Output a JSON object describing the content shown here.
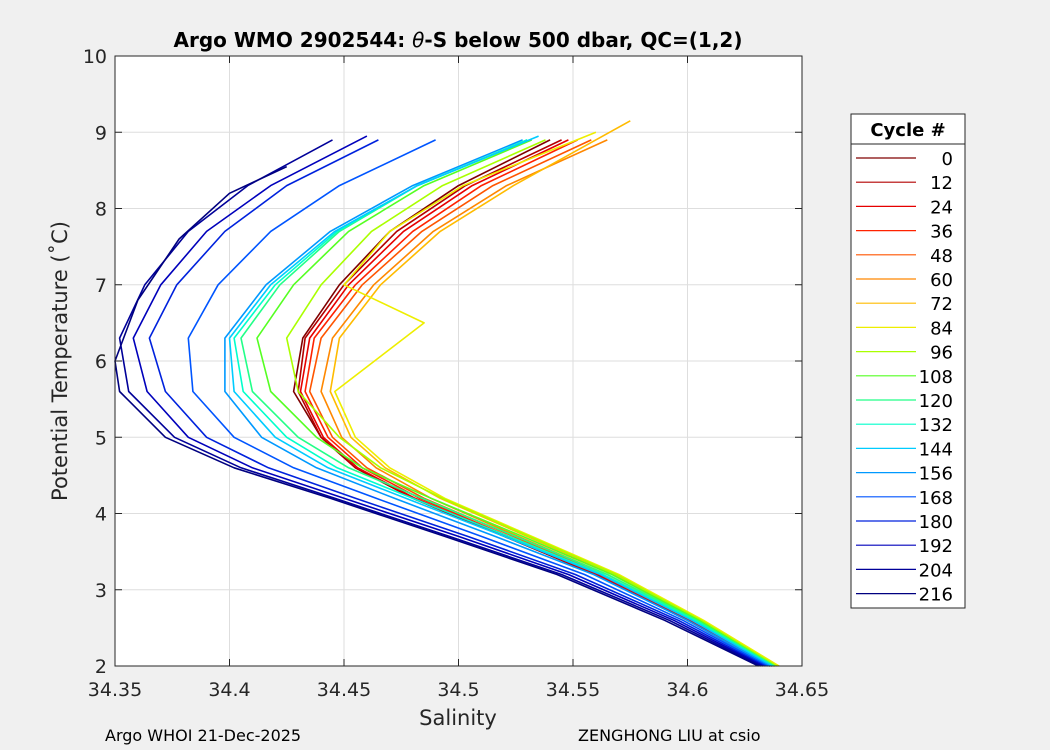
{
  "chart_data": {
    "type": "line",
    "title_prefix": "Argo WMO 2902544: ",
    "title_symbol": "θ",
    "title_suffix": "-S below 500 dbar,  QC=(1,2)",
    "xlabel": "Salinity",
    "ylabel": "Potential Temperature (˚C)",
    "xlim": [
      34.35,
      34.65
    ],
    "ylim": [
      2,
      10
    ],
    "x_ticks": [
      34.35,
      34.4,
      34.45,
      34.5,
      34.55,
      34.6,
      34.65
    ],
    "x_tick_labels": [
      "34.35",
      "34.4",
      "34.45",
      "34.5",
      "34.55",
      "34.6",
      "34.65"
    ],
    "y_ticks": [
      2,
      3,
      4,
      5,
      6,
      7,
      8,
      9,
      10
    ],
    "y_tick_labels": [
      "2",
      "3",
      "4",
      "5",
      "6",
      "7",
      "8",
      "9",
      "10"
    ],
    "grid": true,
    "legend_title": "Cycle #",
    "legend_position": "right",
    "series": [
      {
        "name": "0",
        "color": "#800000",
        "x": [
          34.636,
          34.6,
          34.56,
          34.52,
          34.48,
          34.455,
          34.44,
          34.428,
          34.432,
          34.448,
          34.47,
          34.5,
          34.54
        ],
        "y": [
          2.0,
          2.6,
          3.2,
          3.7,
          4.2,
          4.6,
          5.0,
          5.6,
          6.3,
          7.0,
          7.7,
          8.3,
          8.9
        ]
      },
      {
        "name": "12",
        "color": "#b30000",
        "x": [
          34.636,
          34.6,
          34.56,
          34.52,
          34.48,
          34.455,
          34.44,
          34.43,
          34.433,
          34.45,
          34.473,
          34.503,
          34.545
        ],
        "y": [
          2.0,
          2.6,
          3.2,
          3.7,
          4.2,
          4.6,
          5.0,
          5.6,
          6.3,
          7.0,
          7.7,
          8.3,
          8.9
        ]
      },
      {
        "name": "24",
        "color": "#e60000",
        "x": [
          34.637,
          34.601,
          34.561,
          34.521,
          34.481,
          34.456,
          34.441,
          34.431,
          34.435,
          34.452,
          34.476,
          34.506,
          34.548
        ],
        "y": [
          2.0,
          2.6,
          3.2,
          3.7,
          4.2,
          4.6,
          5.0,
          5.6,
          6.3,
          7.0,
          7.7,
          8.3,
          8.9
        ]
      },
      {
        "name": "36",
        "color": "#ff2200",
        "x": [
          34.637,
          34.602,
          34.562,
          34.522,
          34.483,
          34.458,
          34.443,
          34.433,
          34.437,
          34.455,
          34.48,
          34.51,
          34.552
        ],
        "y": [
          2.0,
          2.6,
          3.2,
          3.7,
          4.2,
          4.6,
          5.0,
          5.6,
          6.3,
          7.0,
          7.7,
          8.3,
          8.9
        ]
      },
      {
        "name": "48",
        "color": "#ff5500",
        "x": [
          34.638,
          34.603,
          34.563,
          34.524,
          34.485,
          34.46,
          34.445,
          34.435,
          34.44,
          34.458,
          34.484,
          34.515,
          34.558
        ],
        "y": [
          2.0,
          2.6,
          3.2,
          3.7,
          4.2,
          4.6,
          5.0,
          5.6,
          6.3,
          7.0,
          7.7,
          8.3,
          8.9
        ]
      },
      {
        "name": "60",
        "color": "#ff8800",
        "x": [
          34.638,
          34.604,
          34.565,
          34.526,
          34.488,
          34.464,
          34.449,
          34.44,
          34.445,
          34.463,
          34.489,
          34.521,
          34.565
        ],
        "y": [
          2.0,
          2.6,
          3.2,
          3.7,
          4.2,
          4.6,
          5.0,
          5.6,
          6.3,
          7.0,
          7.7,
          8.3,
          8.9
        ]
      },
      {
        "name": "72",
        "color": "#ffbb00",
        "x": [
          34.639,
          34.606,
          34.568,
          34.53,
          34.492,
          34.468,
          34.453,
          34.444,
          34.448,
          34.466,
          34.492,
          34.524,
          34.575
        ],
        "y": [
          2.0,
          2.6,
          3.2,
          3.7,
          4.2,
          4.6,
          5.0,
          5.6,
          6.3,
          7.0,
          7.7,
          8.3,
          9.15
        ]
      },
      {
        "name": "84",
        "color": "#eeee00",
        "x": [
          34.64,
          34.607,
          34.57,
          34.532,
          34.494,
          34.47,
          34.455,
          34.446,
          34.485,
          34.45,
          34.47,
          34.502,
          34.56
        ],
        "y": [
          2.0,
          2.6,
          3.2,
          3.7,
          4.2,
          4.6,
          5.0,
          5.6,
          6.5,
          7.0,
          7.7,
          8.3,
          9.0
        ]
      },
      {
        "name": "96",
        "color": "#aaff00",
        "x": [
          34.639,
          34.606,
          34.569,
          34.531,
          34.493,
          34.466,
          34.448,
          34.43,
          34.425,
          34.44,
          34.462,
          34.493,
          34.538
        ],
        "y": [
          2.0,
          2.6,
          3.2,
          3.7,
          4.2,
          4.6,
          5.0,
          5.6,
          6.3,
          7.0,
          7.7,
          8.3,
          8.9
        ]
      },
      {
        "name": "108",
        "color": "#55ff22",
        "x": [
          34.638,
          34.605,
          34.567,
          34.528,
          34.488,
          34.458,
          34.438,
          34.418,
          34.412,
          34.428,
          34.452,
          34.485,
          34.532
        ],
        "y": [
          2.0,
          2.6,
          3.2,
          3.7,
          4.2,
          4.6,
          5.0,
          5.6,
          6.3,
          7.0,
          7.7,
          8.3,
          8.9
        ]
      },
      {
        "name": "120",
        "color": "#22ff88",
        "x": [
          34.638,
          34.604,
          34.565,
          34.525,
          34.484,
          34.452,
          34.43,
          34.41,
          34.405,
          34.422,
          34.448,
          34.482,
          34.53
        ],
        "y": [
          2.0,
          2.6,
          3.2,
          3.7,
          4.2,
          4.6,
          5.0,
          5.6,
          6.3,
          7.0,
          7.7,
          8.3,
          8.9
        ]
      },
      {
        "name": "132",
        "color": "#00ffcc",
        "x": [
          34.637,
          34.603,
          34.563,
          34.522,
          34.48,
          34.447,
          34.425,
          34.406,
          34.402,
          34.42,
          34.447,
          34.482,
          34.53
        ],
        "y": [
          2.0,
          2.6,
          3.2,
          3.7,
          4.2,
          4.6,
          5.0,
          5.6,
          6.3,
          7.0,
          7.7,
          8.3,
          8.9
        ]
      },
      {
        "name": "144",
        "color": "#00ccff",
        "x": [
          34.637,
          34.602,
          34.562,
          34.52,
          34.477,
          34.443,
          34.42,
          34.402,
          34.4,
          34.418,
          34.446,
          34.482,
          34.535
        ],
        "y": [
          2.0,
          2.6,
          3.2,
          3.7,
          4.2,
          4.6,
          5.0,
          5.6,
          6.3,
          7.0,
          7.7,
          8.3,
          8.95
        ]
      },
      {
        "name": "156",
        "color": "#0099ff",
        "x": [
          34.636,
          34.6,
          34.559,
          34.516,
          34.472,
          34.438,
          34.414,
          34.398,
          34.398,
          34.416,
          34.444,
          34.48,
          34.528
        ],
        "y": [
          2.0,
          2.6,
          3.2,
          3.7,
          4.2,
          4.6,
          5.0,
          5.6,
          6.3,
          7.0,
          7.7,
          8.3,
          8.9
        ]
      },
      {
        "name": "168",
        "color": "#0055ff",
        "x": [
          34.635,
          34.598,
          34.555,
          34.51,
          34.464,
          34.428,
          34.402,
          34.384,
          34.382,
          34.395,
          34.418,
          34.448,
          34.49
        ],
        "y": [
          2.0,
          2.6,
          3.2,
          3.7,
          4.2,
          4.6,
          5.0,
          5.6,
          6.3,
          7.0,
          7.7,
          8.3,
          8.9
        ]
      },
      {
        "name": "180",
        "color": "#0022dd",
        "x": [
          34.634,
          34.596,
          34.551,
          34.504,
          34.455,
          34.417,
          34.39,
          34.372,
          34.365,
          34.377,
          34.398,
          34.425,
          34.465
        ],
        "y": [
          2.0,
          2.6,
          3.2,
          3.7,
          4.2,
          4.6,
          5.0,
          5.6,
          6.3,
          7.0,
          7.7,
          8.3,
          8.9
        ]
      },
      {
        "name": "192",
        "color": "#0000bb",
        "x": [
          34.633,
          34.594,
          34.548,
          34.5,
          34.45,
          34.41,
          34.382,
          34.364,
          34.358,
          34.37,
          34.39,
          34.418,
          34.46
        ],
        "y": [
          2.0,
          2.6,
          3.2,
          3.7,
          4.2,
          4.6,
          5.0,
          5.6,
          6.3,
          7.0,
          7.7,
          8.3,
          8.95
        ]
      },
      {
        "name": "204",
        "color": "#000099",
        "x": [
          34.632,
          34.592,
          34.545,
          34.496,
          34.446,
          34.405,
          34.376,
          34.356,
          34.352,
          34.363,
          34.382,
          34.408,
          34.445
        ],
        "y": [
          2.0,
          2.6,
          3.2,
          3.7,
          4.2,
          4.6,
          5.0,
          5.6,
          6.3,
          7.0,
          7.7,
          8.3,
          8.9
        ]
      },
      {
        "name": "216",
        "color": "#000080",
        "x": [
          34.631,
          34.59,
          34.543,
          34.494,
          34.444,
          34.402,
          34.372,
          34.352,
          34.35,
          34.36,
          34.378,
          34.4,
          34.425
        ],
        "y": [
          2.0,
          2.6,
          3.2,
          3.7,
          4.2,
          4.6,
          5.0,
          5.6,
          6.0,
          6.8,
          7.6,
          8.2,
          8.55
        ]
      }
    ]
  },
  "footer": {
    "left": "Argo WHOI 21-Dec-2025",
    "right": "ZENGHONG LIU at csio"
  }
}
